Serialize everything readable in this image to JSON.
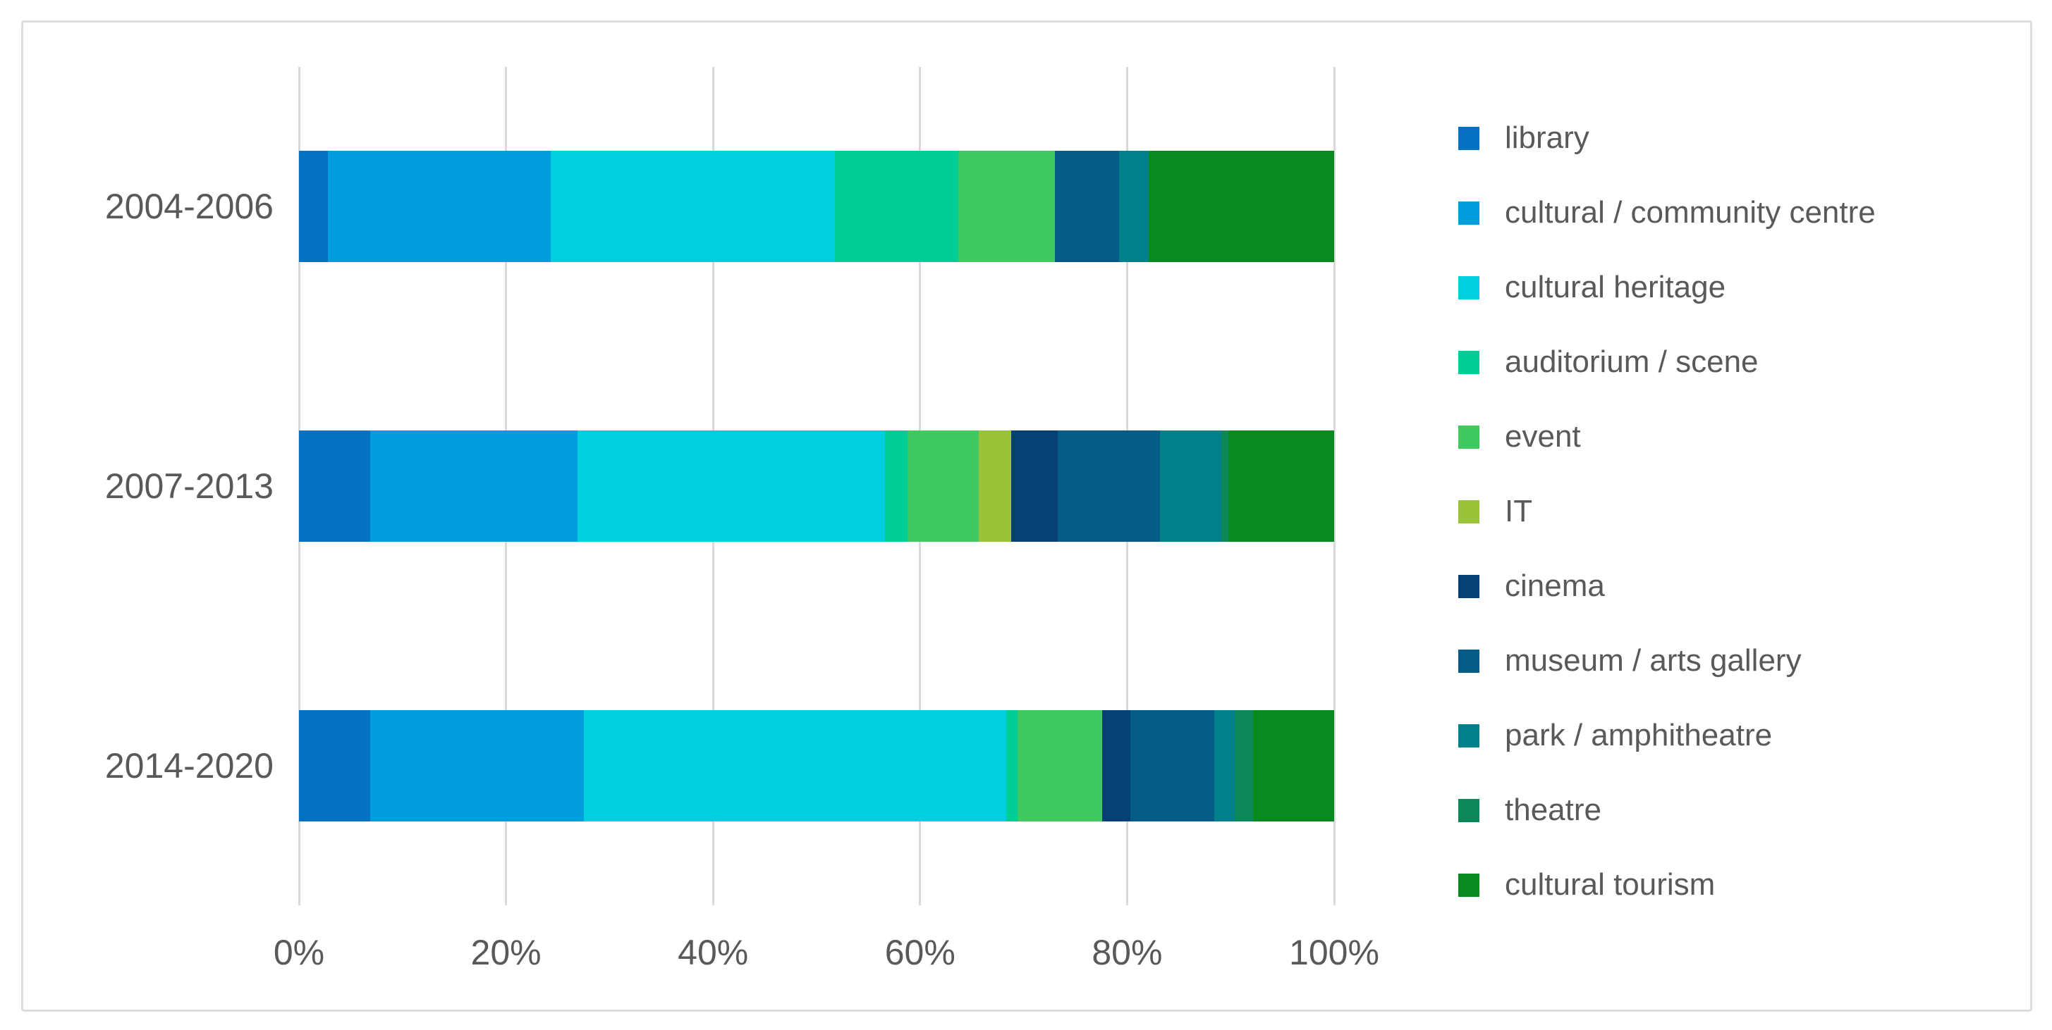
{
  "chart_data": {
    "type": "bar",
    "orientation": "horizontal",
    "stacked": true,
    "unit": "percent",
    "title": "",
    "xlabel": "",
    "ylabel": "",
    "categories": [
      "2004-2006",
      "2007-2013",
      "2014-2020"
    ],
    "series": [
      {
        "name": "library",
        "color": "#0670C2",
        "values": [
          2.8,
          6.9,
          6.9
        ]
      },
      {
        "name": "cultural / community centre",
        "color": "#009DDE",
        "values": [
          21.5,
          20.0,
          20.6
        ]
      },
      {
        "name": "cultural heritage",
        "color": "#00CFDD",
        "values": [
          27.5,
          29.7,
          40.8
        ]
      },
      {
        "name": "auditorium / scene",
        "color": "#00CC95",
        "values": [
          11.9,
          2.2,
          1.1
        ]
      },
      {
        "name": "event",
        "color": "#3FC95F",
        "values": [
          9.3,
          6.9,
          8.2
        ]
      },
      {
        "name": "IT",
        "color": "#9AC339",
        "values": [
          0,
          3.1,
          0
        ]
      },
      {
        "name": "cinema",
        "color": "#064075",
        "values": [
          0,
          4.5,
          2.7
        ]
      },
      {
        "name": "museum / arts gallery",
        "color": "#055C84",
        "values": [
          6.2,
          9.9,
          8.1
        ]
      },
      {
        "name": "park / amphitheatre",
        "color": "#02808A",
        "values": [
          2.9,
          5.9,
          2.0
        ]
      },
      {
        "name": "theatre",
        "color": "#0B8858",
        "values": [
          0,
          0.7,
          1.8
        ]
      },
      {
        "name": "cultural tourism",
        "color": "#088A1E",
        "values": [
          17.9,
          10.2,
          7.8
        ]
      }
    ],
    "x_axis": {
      "ticks": [
        "0%",
        "20%",
        "40%",
        "60%",
        "80%",
        "100%"
      ],
      "range": [
        0,
        100
      ],
      "grid": true
    },
    "legend_position": "right",
    "text_color": "#595959",
    "grid_color": "#D9D9D9",
    "frame_color": "#DCDCDC",
    "background_color": "#FFFFFF"
  }
}
